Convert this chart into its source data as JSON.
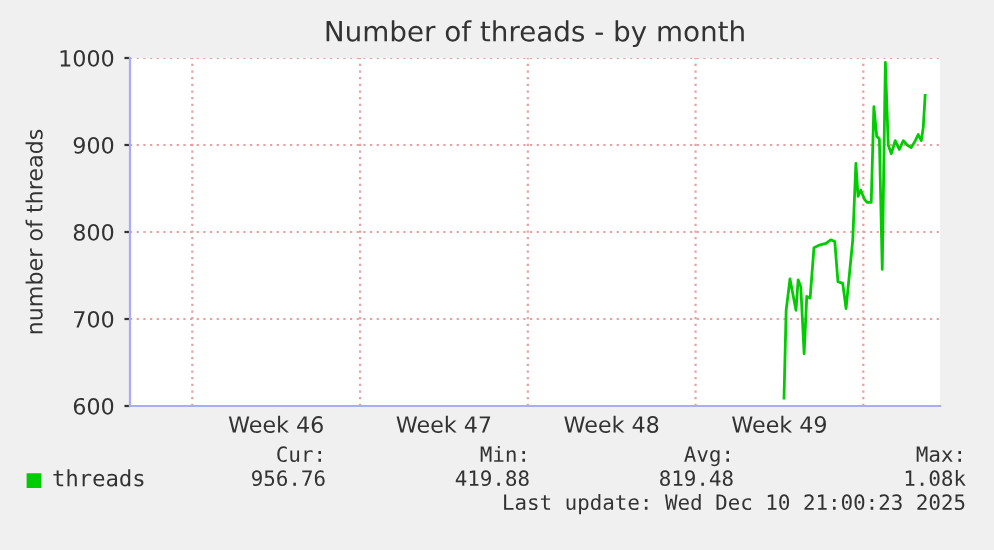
{
  "chart_data": {
    "type": "line",
    "title": "Number of threads - by month",
    "ylabel": "number of threads",
    "xlim": [
      "2025-11-07T09:36",
      "2025-12-11T04:48"
    ],
    "xticks": [
      {
        "value": "2025-11-10",
        "label": null
      },
      {
        "value": "2025-11-17",
        "label": null
      },
      {
        "value": "2025-11-24",
        "label": null
      },
      {
        "value": "2025-12-01",
        "label": null
      },
      {
        "value": "2025-12-08",
        "label": null
      },
      {
        "value": "2025-11-13T12:00",
        "label": "Week 46"
      },
      {
        "value": "2025-11-20T12:00",
        "label": "Week 47"
      },
      {
        "value": "2025-11-27T12:00",
        "label": "Week 48"
      },
      {
        "value": "2025-12-04T12:00",
        "label": "Week 49"
      }
    ],
    "ylim": [
      600,
      1000
    ],
    "yticks": [
      600,
      700,
      800,
      900,
      1000
    ],
    "grid": true,
    "legend": "bottom",
    "series": [
      {
        "name": "threads",
        "color": "#00cc00",
        "x": [
          "2025-12-04T16:34",
          "2025-12-04T18:43",
          "2025-12-04T22:34",
          "2025-12-05T04:34",
          "2025-12-05T06:43",
          "2025-12-05T09:22",
          "2025-12-05T12:43",
          "2025-12-05T15:22",
          "2025-12-05T18:43",
          "2025-12-05T22:34",
          "2025-12-06T04:05",
          "2025-12-06T10:34",
          "2025-12-06T15:22",
          "2025-12-06T19:26",
          "2025-12-06T22:34",
          "2025-12-07T03:22",
          "2025-12-07T06:43",
          "2025-12-07T13:26",
          "2025-12-07T16:34",
          "2025-12-07T18:43",
          "2025-12-07T21:22",
          "2025-12-08T01:26",
          "2025-12-08T04:05",
          "2025-12-08T07:55",
          "2025-12-08T10:34",
          "2025-12-08T13:26",
          "2025-12-08T16:05",
          "2025-12-08T18:58",
          "2025-12-08T22:05",
          "2025-12-09T00:58",
          "2025-12-09T04:05",
          "2025-12-09T07:55",
          "2025-12-09T12:00",
          "2025-12-09T16:05",
          "2025-12-09T19:55",
          "2025-12-10T00:00",
          "2025-12-10T04:05",
          "2025-12-10T06:58",
          "2025-12-10T10:05",
          "2025-12-10T12:00",
          "2025-12-10T13:55"
        ],
        "values": [
          609,
          710,
          746,
          710,
          745,
          737,
          660,
          726,
          724,
          782,
          785,
          787,
          791,
          789,
          743,
          741,
          712,
          791,
          879,
          841,
          848,
          837,
          834,
          834,
          944,
          910,
          907,
          757,
          995,
          900,
          890,
          905,
          895,
          905,
          900,
          897,
          905,
          912,
          905,
          920,
          957
        ]
      }
    ],
    "annotations": [
      "Cur:",
      "Min:",
      "Avg:",
      "Max:",
      "956.76",
      "419.88",
      "819.48",
      "1.08k",
      "Last update: Wed Dec 10 21:00:23 2025"
    ]
  }
}
